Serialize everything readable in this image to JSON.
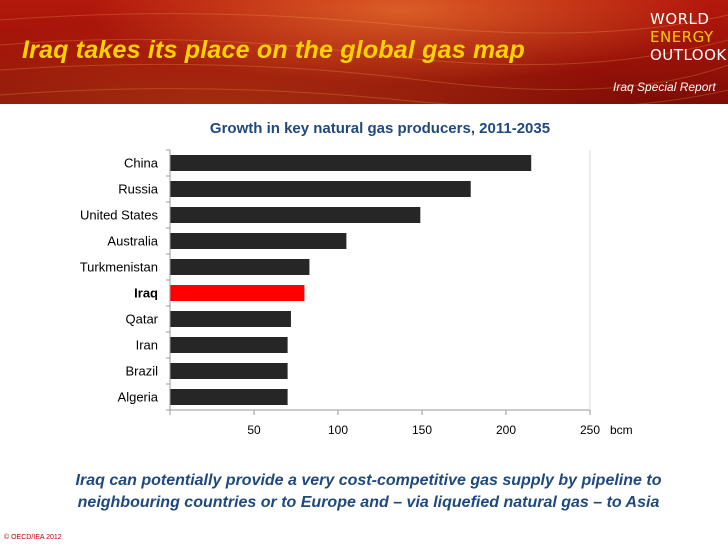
{
  "slide": {
    "title": "Iraq takes its place on the global gas map",
    "brand_line1": "WORLD",
    "brand_line2": "ENERGY",
    "brand_line3": "OUTLOOK",
    "brand_sub": "Iraq Special Report",
    "caption": "Iraq can potentially provide a very cost-competitive gas supply by pipeline to neighbouring countries or to Europe and – via liquefied natural gas – to Asia",
    "copyright": "© OECD/IEA 2012"
  },
  "colors": {
    "banner": "#9a1208",
    "title": "#ffd200",
    "bar": "#262626",
    "highlight": "#ff0000",
    "chart_title": "#1f497d"
  },
  "chart_data": {
    "type": "bar",
    "orientation": "horizontal",
    "title": "Growth in key natural gas producers, 2011-2035",
    "unit": "bcm",
    "categories": [
      "China",
      "Russia",
      "United States",
      "Australia",
      "Turkmenistan",
      "Iraq",
      "Qatar",
      "Iran",
      "Brazil",
      "Algeria"
    ],
    "values": [
      215,
      179,
      149,
      105,
      83,
      80,
      72,
      70,
      70,
      70
    ],
    "highlight": "Iraq",
    "xlim": [
      0,
      250
    ],
    "xticks": [
      50,
      100,
      150,
      200,
      250
    ],
    "grid": false
  }
}
